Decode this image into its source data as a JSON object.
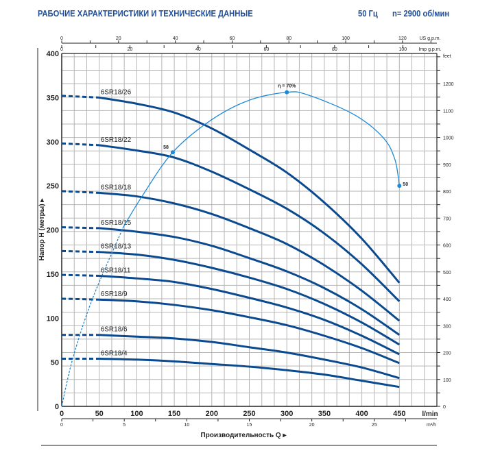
{
  "header": {
    "title": "РАБОЧИЕ ХАРАКТЕРИСТИКИ И ТЕХНИЧЕСКИЕ ДАННЫЕ",
    "frequency": "50 Гц",
    "speed": "n= 2900 об/мин"
  },
  "colors": {
    "title": "#1f4e9a",
    "pump_curve": "#0b4a8f",
    "efficiency_curve": "#1e8ad6",
    "grid": "#b4b4b4",
    "axis": "#222222"
  },
  "chart_data": {
    "type": "line",
    "xlabel": "Производительность Q",
    "ylabel": "Напор H (метры)",
    "xlim": [
      0,
      500
    ],
    "ylim": [
      0,
      400
    ],
    "grid": true,
    "x_ticks": [
      0,
      50,
      100,
      150,
      200,
      250,
      300,
      350,
      400,
      450
    ],
    "x_unit": "l/min",
    "y_ticks": [
      0,
      50,
      100,
      150,
      200,
      250,
      300,
      350,
      400
    ],
    "secondary_axes": {
      "top_us_gpm": {
        "unit": "US g.p.m.",
        "ticks": [
          0,
          20,
          40,
          60,
          80,
          100,
          120
        ]
      },
      "top_imp_gpm": {
        "unit": "Imp g.p.m.",
        "ticks": [
          0,
          20,
          40,
          60,
          80,
          100
        ]
      },
      "bottom_m3h": {
        "unit": "m³/h",
        "ticks": [
          0,
          5,
          10,
          15,
          20,
          25
        ]
      },
      "right_feet": {
        "unit": "feet",
        "ticks": [
          0,
          100,
          200,
          300,
          400,
          500,
          600,
          700,
          800,
          900,
          1000,
          1100,
          1200
        ]
      }
    },
    "q": [
      0,
      50,
      100,
      150,
      200,
      250,
      300,
      350,
      400,
      450
    ],
    "series": [
      {
        "name": "6SR18/26",
        "values": [
          352,
          350,
          343,
          333,
          315,
          291,
          265,
          231,
          190,
          140
        ]
      },
      {
        "name": "6SR18/22",
        "values": [
          298,
          296,
          290,
          282,
          266,
          246,
          224,
          196,
          161,
          119
        ]
      },
      {
        "name": "6SR18/18",
        "values": [
          244,
          242,
          238,
          230,
          218,
          202,
          184,
          160,
          131,
          97
        ]
      },
      {
        "name": "6SR18/15",
        "values": [
          203,
          202,
          198,
          192,
          182,
          168,
          153,
          134,
          110,
          81
        ]
      },
      {
        "name": "6SR18/13",
        "values": [
          176,
          175,
          172,
          166,
          157,
          146,
          133,
          116,
          95,
          70
        ]
      },
      {
        "name": "6SR18/11",
        "values": [
          149,
          148,
          145,
          141,
          133,
          123,
          112,
          98,
          80,
          59
        ]
      },
      {
        "name": "6SR18/9",
        "values": [
          122,
          121,
          119,
          115,
          109,
          101,
          92,
          80,
          66,
          49
        ]
      },
      {
        "name": "6SR18/6",
        "values": [
          81,
          81,
          79,
          77,
          73,
          67,
          61,
          53,
          44,
          32
        ]
      },
      {
        "name": "6SR18/4",
        "values": [
          54,
          54,
          53,
          51,
          48,
          45,
          41,
          36,
          29,
          22
        ]
      }
    ],
    "efficiency_curve": {
      "points": [
        [
          0,
          0
        ],
        [
          15,
          55
        ],
        [
          41,
          122
        ],
        [
          82,
          203
        ],
        [
          107,
          238
        ],
        [
          148,
          288
        ],
        [
          200,
          325
        ],
        [
          250,
          347
        ],
        [
          300,
          356
        ],
        [
          328,
          353
        ],
        [
          389,
          331
        ],
        [
          428,
          305
        ],
        [
          444,
          280
        ],
        [
          450,
          250
        ]
      ],
      "markers": [
        {
          "label": "58",
          "q": 148,
          "h": 288
        },
        {
          "label": "η = 70%",
          "q": 300,
          "h": 356
        },
        {
          "label": "50",
          "q": 450,
          "h": 250
        }
      ]
    }
  }
}
